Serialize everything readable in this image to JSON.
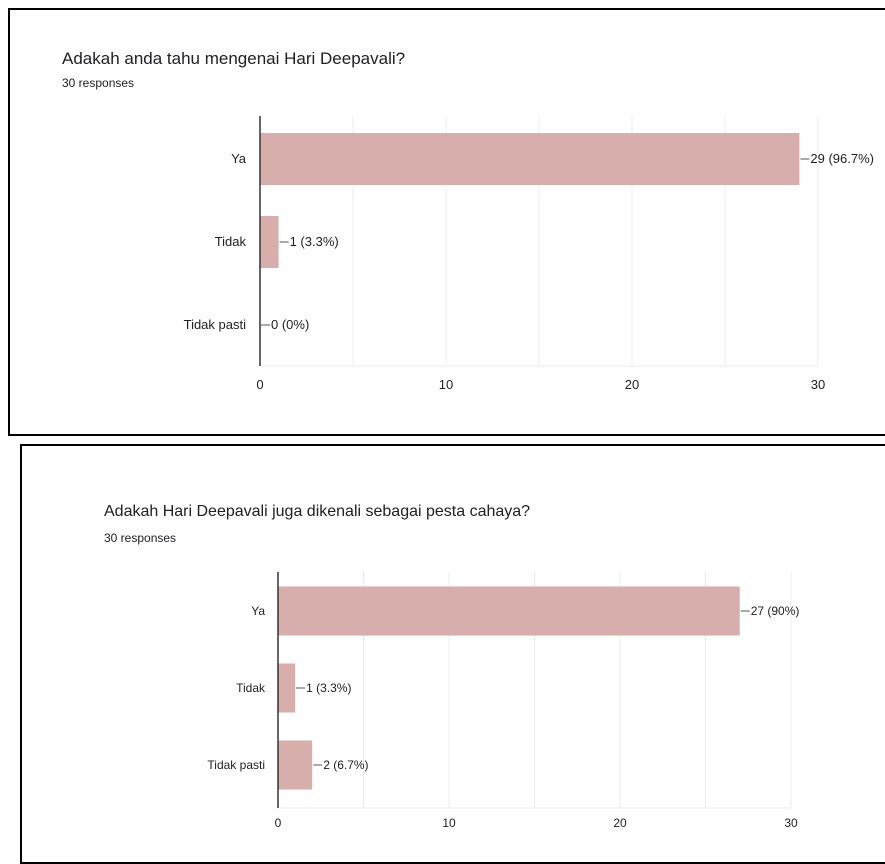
{
  "colors": {
    "bar": "#d7aeab",
    "grid": "#ececec",
    "axis": "#333333",
    "leader": "#555555"
  },
  "chart_data": [
    {
      "type": "bar",
      "orientation": "horizontal",
      "title": "Adakah anda tahu mengenai Hari Deepavali?",
      "subtitle": "30 responses",
      "categories": [
        "Ya",
        "Tidak",
        "Tidak pasti"
      ],
      "values": [
        29,
        1,
        0
      ],
      "data_labels": [
        "29 (96.7%)",
        "1 (3.3%)",
        "0 (0%)"
      ],
      "xlim": [
        0,
        30
      ],
      "xticks": [
        0,
        10,
        20,
        30
      ],
      "grid": true
    },
    {
      "type": "bar",
      "orientation": "horizontal",
      "title": "Adakah Hari Deepavali juga dikenali sebagai pesta cahaya?",
      "subtitle": "30 responses",
      "categories": [
        "Ya",
        "Tidak",
        "Tidak pasti"
      ],
      "values": [
        27,
        1,
        2
      ],
      "data_labels": [
        "27 (90%)",
        "1 (3.3%)",
        "2 (6.7%)"
      ],
      "xlim": [
        0,
        30
      ],
      "xticks": [
        0,
        10,
        20,
        30
      ],
      "grid": true
    }
  ]
}
